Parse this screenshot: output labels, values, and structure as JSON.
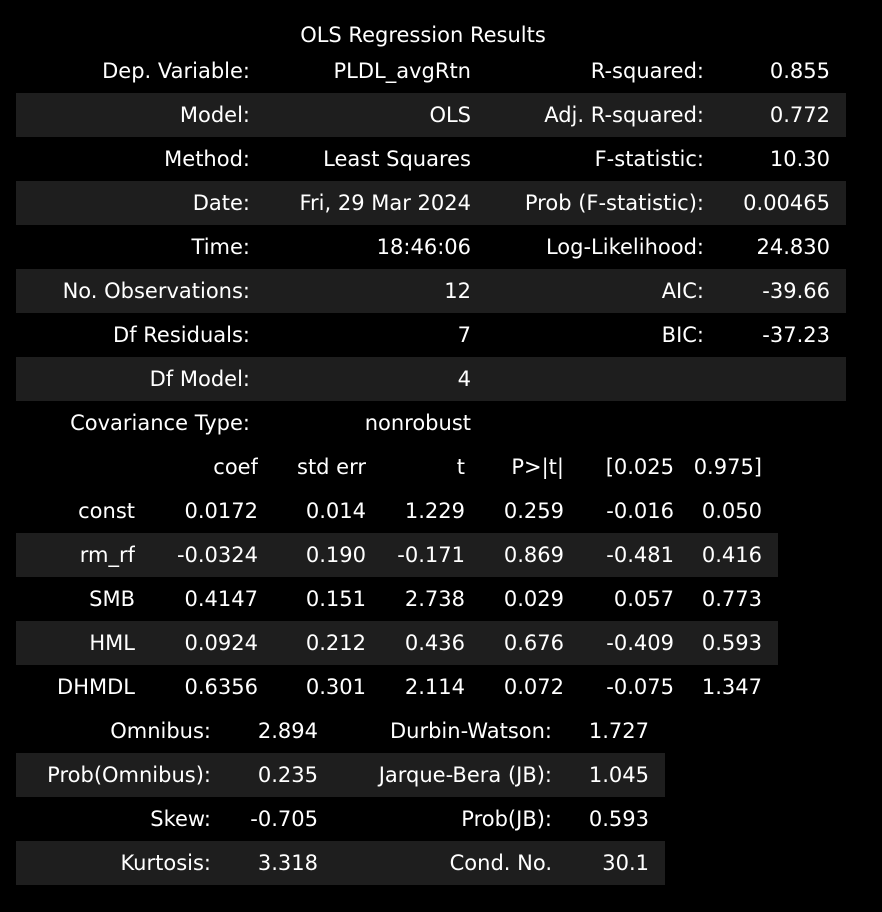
{
  "title": "OLS Regression Results",
  "summary": {
    "rows": [
      {
        "label1": "Dep. Variable:",
        "value1": "PLDL_avgRtn",
        "label2": "R-squared:",
        "value2": "0.855"
      },
      {
        "label1": "Model:",
        "value1": "OLS",
        "label2": "Adj. R-squared:",
        "value2": "0.772"
      },
      {
        "label1": "Method:",
        "value1": "Least Squares",
        "label2": "F-statistic:",
        "value2": "10.30"
      },
      {
        "label1": "Date:",
        "value1": "Fri, 29 Mar 2024",
        "label2": "Prob (F-statistic):",
        "value2": "0.00465"
      },
      {
        "label1": "Time:",
        "value1": "18:46:06",
        "label2": "Log-Likelihood:",
        "value2": "24.830"
      },
      {
        "label1": "No. Observations:",
        "value1": "12",
        "label2": "AIC:",
        "value2": "-39.66"
      },
      {
        "label1": "Df Residuals:",
        "value1": "7",
        "label2": "BIC:",
        "value2": "-37.23"
      },
      {
        "label1": "Df Model:",
        "value1": "4",
        "label2": "",
        "value2": ""
      },
      {
        "label1": "Covariance Type:",
        "value1": "nonrobust",
        "label2": "",
        "value2": ""
      }
    ]
  },
  "coefficients": {
    "headers": [
      "",
      "coef",
      "std err",
      "t",
      "P>|t|",
      "[0.025",
      "0.975]"
    ],
    "rows": [
      {
        "name": "const",
        "coef": "0.0172",
        "std_err": "0.014",
        "t": "1.229",
        "p": "0.259",
        "lo": "-0.016",
        "hi": "0.050"
      },
      {
        "name": "rm_rf",
        "coef": "-0.0324",
        "std_err": "0.190",
        "t": "-0.171",
        "p": "0.869",
        "lo": "-0.481",
        "hi": "0.416"
      },
      {
        "name": "SMB",
        "coef": "0.4147",
        "std_err": "0.151",
        "t": "2.738",
        "p": "0.029",
        "lo": "0.057",
        "hi": "0.773"
      },
      {
        "name": "HML",
        "coef": "0.0924",
        "std_err": "0.212",
        "t": "0.436",
        "p": "0.676",
        "lo": "-0.409",
        "hi": "0.593"
      },
      {
        "name": "DHMDL",
        "coef": "0.6356",
        "std_err": "0.301",
        "t": "2.114",
        "p": "0.072",
        "lo": "-0.075",
        "hi": "1.347"
      }
    ]
  },
  "diagnostics": {
    "rows": [
      {
        "label1": "Omnibus:",
        "value1": "2.894",
        "label2": "Durbin-Watson:",
        "value2": "1.727"
      },
      {
        "label1": "Prob(Omnibus):",
        "value1": "0.235",
        "label2": "Jarque-Bera (JB):",
        "value2": "1.045"
      },
      {
        "label1": "Skew:",
        "value1": "-0.705",
        "label2": "Prob(JB):",
        "value2": "0.593"
      },
      {
        "label1": "Kurtosis:",
        "value1": "3.318",
        "label2": "Cond. No.",
        "value2": "30.1"
      }
    ]
  },
  "colors": {
    "background": "#000000",
    "row_alt": "#1e1e1e",
    "text": "#ffffff"
  }
}
